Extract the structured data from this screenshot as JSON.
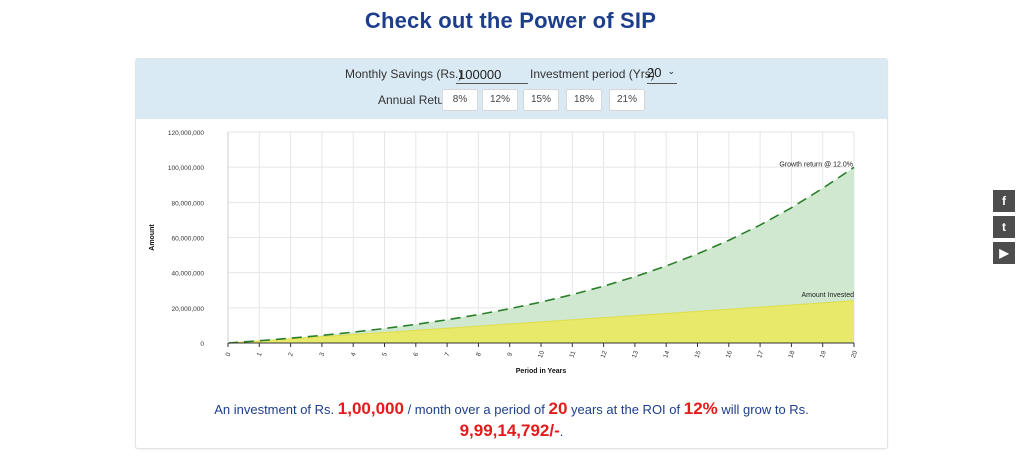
{
  "page": {
    "title": "Check out the Power of SIP"
  },
  "controls": {
    "monthly_savings_label": "Monthly Savings (Rs.)",
    "monthly_savings_value": "100000",
    "period_label": "Investment period (Yrs)",
    "period_value": "20",
    "annual_return_label": "Annual Return",
    "return_options": [
      "8%",
      "12%",
      "15%",
      "18%",
      "21%"
    ]
  },
  "chart_data": {
    "type": "area",
    "xlabel": "Period in Years",
    "ylabel": "Amount",
    "ylim": [
      0,
      120000000
    ],
    "yticks": [
      "0",
      "20,000,000",
      "40,000,000",
      "60,000,000",
      "80,000,000",
      "100,000,000",
      "120,000,000"
    ],
    "x": [
      0,
      1,
      2,
      3,
      4,
      5,
      6,
      7,
      8,
      9,
      10,
      11,
      12,
      13,
      14,
      15,
      16,
      17,
      18,
      19,
      20
    ],
    "grid": true,
    "series": [
      {
        "name": "Growth return @ 12.0%",
        "color": "#2a7f2a",
        "fill": "#cfe8cf",
        "values": [
          0,
          1280000,
          2720000,
          4350000,
          6180000,
          8250000,
          10580000,
          13210000,
          16170000,
          19510000,
          23280000,
          27520000,
          32310000,
          37710000,
          43790000,
          50650000,
          58380000,
          67090000,
          76910000,
          87980000,
          99910000
        ]
      },
      {
        "name": "Amount Invested",
        "color": "#e4e25a",
        "fill": "#e8e86a",
        "values": [
          0,
          1200000,
          2400000,
          3600000,
          4800000,
          6000000,
          7200000,
          8400000,
          9600000,
          10800000,
          12000000,
          13200000,
          14400000,
          15600000,
          16800000,
          18000000,
          19200000,
          20400000,
          21600000,
          22800000,
          24000000
        ]
      }
    ]
  },
  "summary": {
    "p1": "An investment of Rs. ",
    "amount": "1,00,000",
    "p2": " / month over a period of ",
    "years": "20",
    "p3": " years at the ROI of ",
    "roi": "12%",
    "p4": " will grow to Rs.",
    "result": "9,99,14,792/-",
    "p5": "."
  },
  "social": {
    "facebook": "f",
    "twitter": "t",
    "youtube": "▶"
  }
}
